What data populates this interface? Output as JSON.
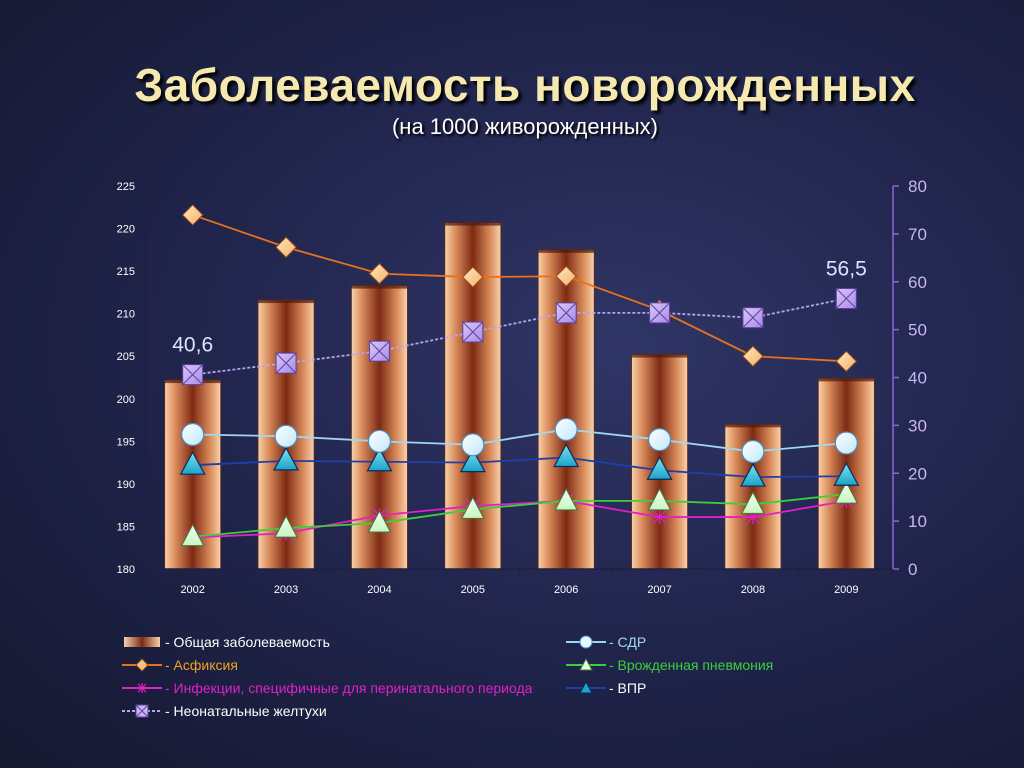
{
  "title": "Заболеваемость новорожденных",
  "subtitle": "(на 1000 живорожденных)",
  "chart_data": {
    "type": "bar+line",
    "categories": [
      "2002",
      "2003",
      "2004",
      "2005",
      "2006",
      "2007",
      "2008",
      "2009"
    ],
    "left_axis": {
      "ylim": [
        180,
        225
      ],
      "ticks": [
        "180",
        "185",
        "190",
        "195",
        "200",
        "205",
        "210",
        "215",
        "220",
        "225"
      ]
    },
    "right_axis": {
      "ylim": [
        0,
        80
      ],
      "ticks": [
        "0",
        "10",
        "20",
        "30",
        "40",
        "50",
        "60",
        "70",
        "80"
      ]
    },
    "bars": {
      "name": "- Общая заболеваемость",
      "axis": "left",
      "values": [
        202.2,
        211.6,
        213.3,
        220.7,
        217.5,
        205.2,
        197.0,
        202.4
      ]
    },
    "series": [
      {
        "name": "- Асфиксия",
        "axis": "left",
        "marker": "diamond",
        "color": "#e8711c",
        "values": [
          221.6,
          217.8,
          214.7,
          214.3,
          214.4,
          210.4,
          205.0,
          204.4
        ]
      },
      {
        "name": "- Неонатальные желтухи",
        "axis": "right",
        "marker": "xbox",
        "color": "#b9a3ec",
        "values": [
          40.6,
          43.0,
          45.5,
          49.5,
          53.5,
          53.5,
          52.5,
          56.5
        ]
      },
      {
        "name": "- СДР",
        "axis": "left",
        "marker": "circle",
        "color": "#9fd6f2",
        "values": [
          195.8,
          195.6,
          195.0,
          194.6,
          196.4,
          195.2,
          193.8,
          194.8
        ]
      },
      {
        "name": "- ВПР",
        "axis": "left",
        "marker": "triangle",
        "color": "#1f3fa8",
        "values": [
          192.2,
          192.7,
          192.6,
          192.5,
          193.1,
          191.6,
          190.8,
          190.9
        ]
      },
      {
        "name": "- Врожденная пневмония",
        "axis": "left",
        "marker": "triangle-green",
        "color": "#3ccf3c",
        "values": [
          183.8,
          184.8,
          185.4,
          187.0,
          188.0,
          188.0,
          187.6,
          188.8
        ]
      },
      {
        "name": "- Инфекции, специфичные для перинатального периода",
        "axis": "left",
        "marker": "asterisk",
        "color": "#e020c8",
        "values": [
          183.7,
          184.2,
          186.3,
          187.4,
          188.0,
          186.1,
          186.1,
          188.0
        ]
      }
    ],
    "data_labels": [
      {
        "text": "40,6",
        "series": "- Неонатальные желтухи",
        "category": "2002"
      },
      {
        "text": "56,5",
        "series": "- Неонатальные желтухи",
        "category": "2009"
      }
    ],
    "legend": [
      {
        "label": "- Общая заболеваемость",
        "swatch": "bar",
        "color": "#ffffff"
      },
      {
        "label": "- СДР",
        "swatch": "circle",
        "color": "#9fd6f2"
      },
      {
        "label": "- Асфиксия",
        "swatch": "diamond",
        "color": "#f0a020"
      },
      {
        "label": "- Врожденная пневмония",
        "swatch": "triangle-green",
        "color": "#3ccf3c"
      },
      {
        "label": "- Инфекции, специфичные для перинатального периода",
        "swatch": "asterisk",
        "color": "#e020c8"
      },
      {
        "label": "- ВПР",
        "swatch": "triangle",
        "color": "#ffffff"
      },
      {
        "label": "- Неонатальные желтухи",
        "swatch": "xbox",
        "color": "#ffffff"
      }
    ],
    "legend_placement": "bottom"
  }
}
